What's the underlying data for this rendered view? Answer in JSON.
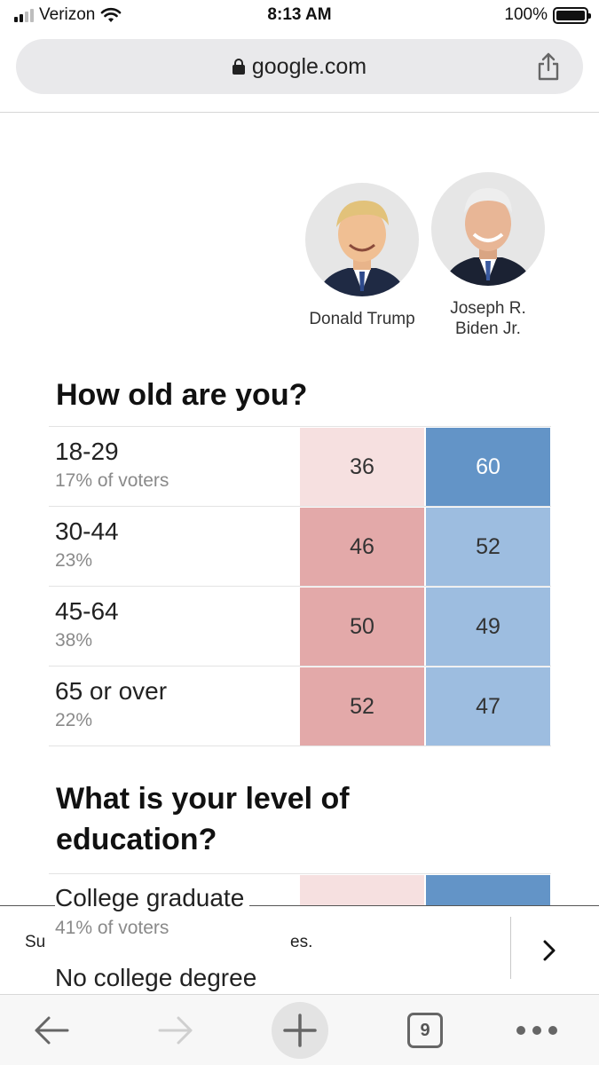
{
  "status_bar": {
    "carrier": "Verizon",
    "time": "8:13 AM",
    "battery": "100%"
  },
  "address_bar": {
    "url": "google.com"
  },
  "candidates": [
    {
      "name_line1": "Donald Trump",
      "name_line2": ""
    },
    {
      "name_line1": "Joseph R.",
      "name_line2": "Biden Jr."
    }
  ],
  "colors": {
    "trump_light": "#f6e0e0",
    "trump_mid": "#e3a9a9",
    "biden_strong": "#6394c7",
    "biden_mid": "#9dbde0"
  },
  "age_section": {
    "heading": "How old are you?",
    "rows": [
      {
        "label": "18-29",
        "share": "17% of voters",
        "trump": "36",
        "biden": "60"
      },
      {
        "label": "30-44",
        "share": "23%",
        "trump": "46",
        "biden": "52"
      },
      {
        "label": "45-64",
        "share": "38%",
        "trump": "50",
        "biden": "49"
      },
      {
        "label": "65 or over",
        "share": "22%",
        "trump": "52",
        "biden": "47"
      }
    ]
  },
  "education_section": {
    "heading_line1": "What is your level of",
    "heading_line2": "education?",
    "rows": [
      {
        "label": "College graduate",
        "share": "41% of voters"
      },
      {
        "label": "No college degree",
        "share": ""
      }
    ]
  },
  "banner": {
    "text_start": "Su",
    "text_end": "es."
  },
  "toolbar": {
    "tab_count": "9"
  }
}
